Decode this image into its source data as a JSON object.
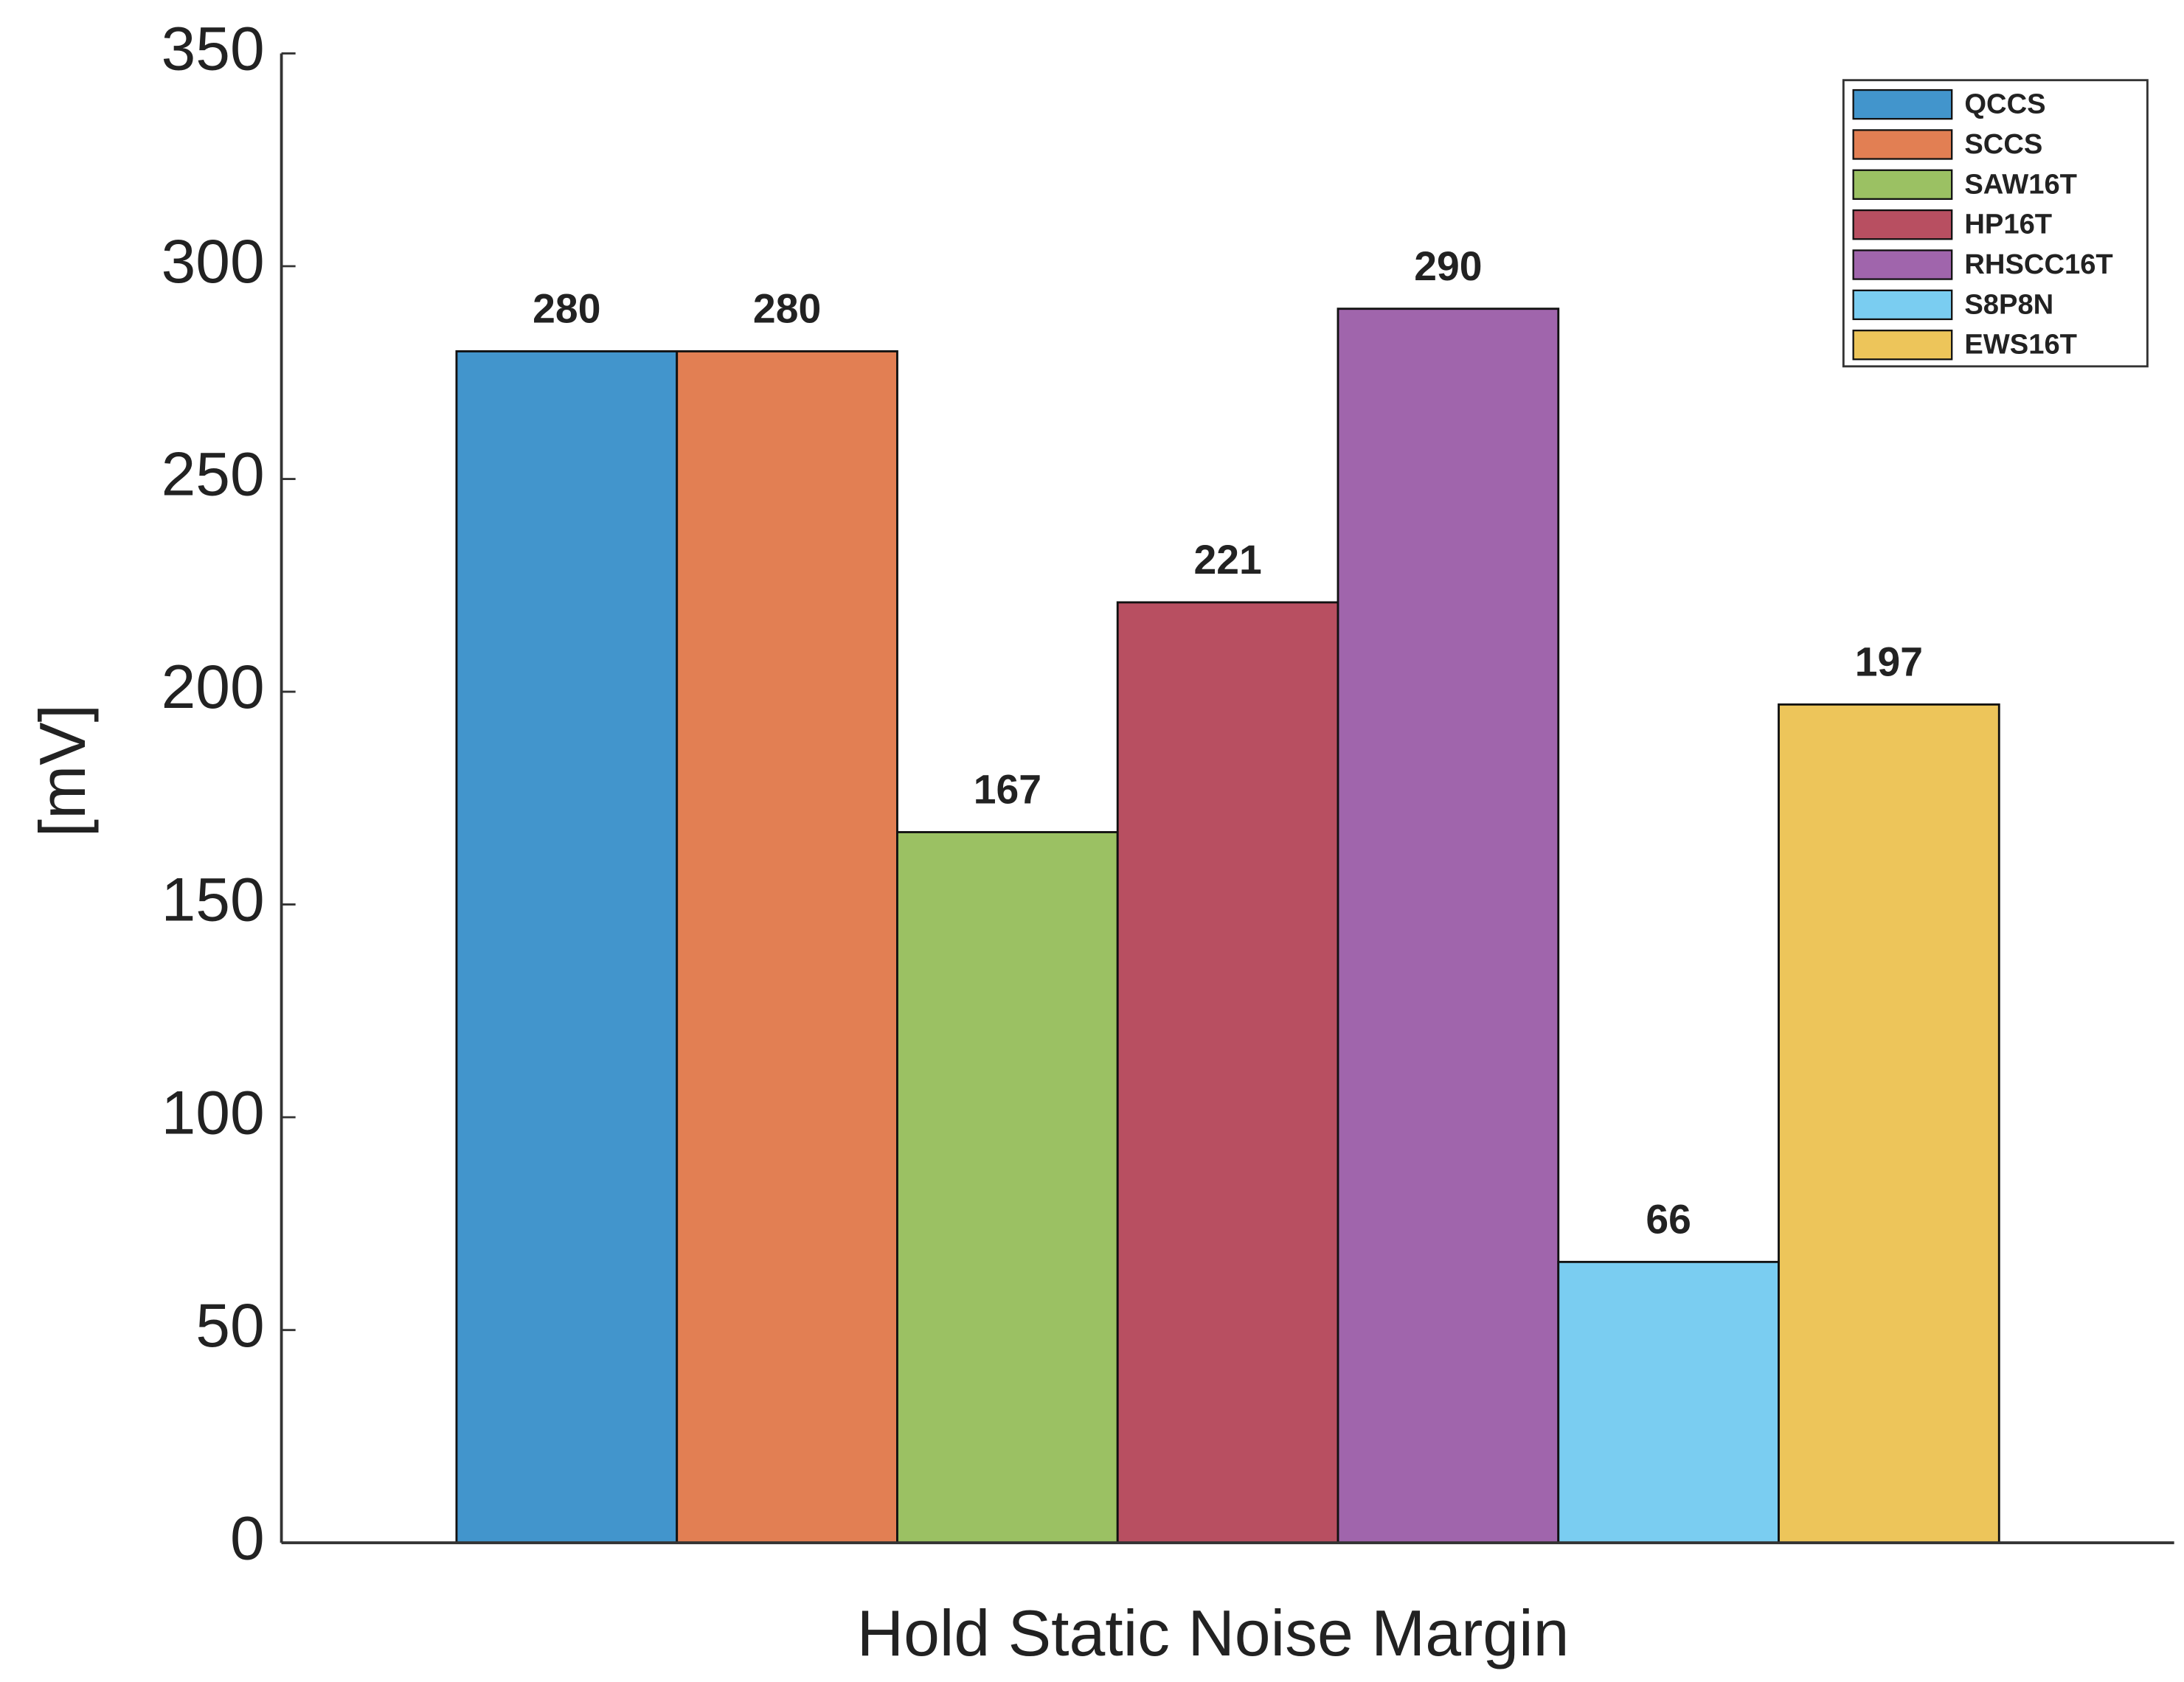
{
  "chart_data": {
    "type": "bar",
    "x_label": "Hold Static Noise Margin",
    "y_label": "[mV]",
    "categories": [
      null
    ],
    "series": [
      {
        "name": "QCCS",
        "color": "#4295cc",
        "values": [
          280
        ]
      },
      {
        "name": "SCCS",
        "color": "#e27f53",
        "values": [
          280
        ]
      },
      {
        "name": "SAW16T",
        "color": "#9bc163",
        "values": [
          167
        ]
      },
      {
        "name": "HP16T",
        "color": "#b84f61",
        "values": [
          221
        ]
      },
      {
        "name": "RHSCC16T",
        "color": "#a065ac",
        "values": [
          290
        ]
      },
      {
        "name": "S8P8N",
        "color": "#7acdf1",
        "values": [
          66
        ]
      },
      {
        "name": "EWS16T",
        "color": "#edc55a",
        "values": [
          197
        ]
      }
    ],
    "ylim": [
      0,
      350
    ],
    "yticks": [
      0,
      50,
      100,
      150,
      200,
      250,
      300,
      350
    ],
    "grid": false,
    "legend": "upper right"
  }
}
